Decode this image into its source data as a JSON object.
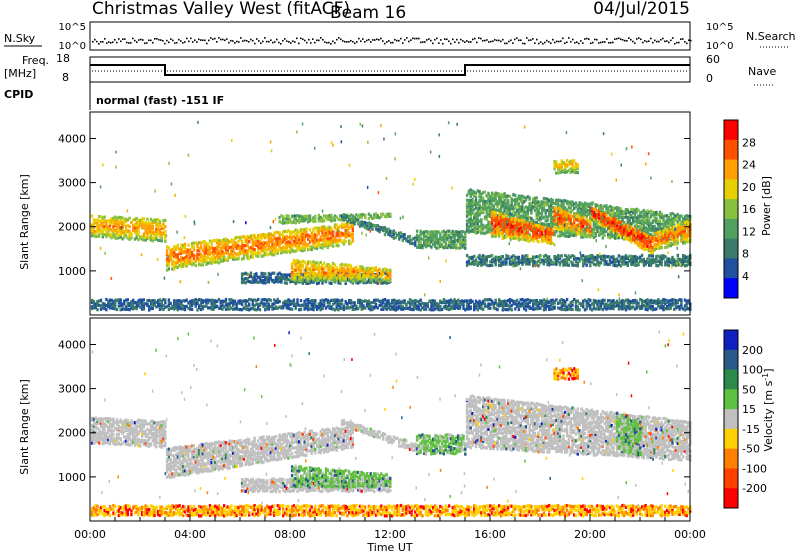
{
  "header": {
    "title": "Christmas Valley West (fitACF)",
    "beam": "Beam 16",
    "date": "04/Jul/2015"
  },
  "sky_panel": {
    "left_label": "N.Sky",
    "right_label": "N.Search",
    "left_ticks": [
      "10^5",
      "10^0"
    ],
    "right_ticks": [
      "10^5",
      "10^0"
    ]
  },
  "freq_panel": {
    "left_label_line1": "Freq.",
    "left_label_line2": "[MHz]",
    "left_ticks": [
      "18",
      "8"
    ],
    "right_label": "Nave",
    "right_ticks": [
      "60",
      "0"
    ]
  },
  "cpid": {
    "label": "CPID",
    "text": "normal (fast) -151 IF"
  },
  "chart_data": [
    {
      "type": "line",
      "panel": "frequency",
      "x_unit": "hours UT",
      "ylim": [
        8,
        18
      ],
      "series": [
        {
          "values": [
            [
              0,
              15.5
            ],
            [
              3,
              15.5
            ],
            [
              3,
              10.5
            ],
            [
              15,
              10.5
            ],
            [
              15,
              15.5
            ],
            [
              24,
              15.5
            ]
          ]
        }
      ]
    },
    {
      "type": "heatmap",
      "panel": "power",
      "xlabel": "",
      "ylabel": "Slant Range [km]",
      "xlim": [
        0,
        24
      ],
      "ylim": [
        0,
        4600
      ],
      "y_ticks": [
        1000,
        2000,
        3000,
        4000
      ],
      "colorbar": {
        "label": "Power [dB]",
        "ticks": [
          4,
          8,
          12,
          16,
          20,
          24,
          28
        ],
        "min": 0,
        "max": 32,
        "colors": [
          "#0000ff",
          "#2050a0",
          "#3a7a6a",
          "#52a060",
          "#88c040",
          "#e8d000",
          "#ffa000",
          "#ff5000",
          "#ff0000"
        ]
      },
      "echo_bands": [
        {
          "x": [
            0.0,
            3.0
          ],
          "y_lo": [
            1800,
            1700
          ],
          "y_hi": [
            2300,
            2200
          ],
          "level": 22
        },
        {
          "x": [
            3.0,
            10.5
          ],
          "y_lo": [
            1050,
            1650
          ],
          "y_hi": [
            1600,
            2150
          ],
          "level": 24
        },
        {
          "x": [
            7.5,
            12.0
          ],
          "y_lo": [
            2100,
            2250
          ],
          "y_hi": [
            2300,
            2350
          ],
          "level": 14
        },
        {
          "x": [
            10.0,
            13.0
          ],
          "y_lo": [
            2200,
            1600
          ],
          "y_hi": [
            2350,
            1800
          ],
          "level": 8
        },
        {
          "x": [
            13.0,
            15.0
          ],
          "y_lo": [
            1550,
            1550
          ],
          "y_hi": [
            1950,
            1950
          ],
          "level": 12
        },
        {
          "x": [
            6.0,
            12.0
          ],
          "y_lo": [
            750,
            750
          ],
          "y_hi": [
            1000,
            1000
          ],
          "level": 6
        },
        {
          "x": [
            8.0,
            12.0
          ],
          "y_lo": [
            800,
            800
          ],
          "y_hi": [
            1300,
            1100
          ],
          "level": 22
        },
        {
          "x": [
            15.0,
            24.0
          ],
          "y_lo": [
            1900,
            1700
          ],
          "y_hi": [
            2900,
            2300
          ],
          "level": 12
        },
        {
          "x": [
            16.0,
            18.5
          ],
          "y_lo": [
            1800,
            1650
          ],
          "y_hi": [
            2400,
            2000
          ],
          "level": 27
        },
        {
          "x": [
            18.5,
            20.0
          ],
          "y_lo": [
            2000,
            1800
          ],
          "y_hi": [
            2500,
            2200
          ],
          "level": 26
        },
        {
          "x": [
            20.0,
            22.5
          ],
          "y_lo": [
            2200,
            1400
          ],
          "y_hi": [
            2500,
            1800
          ],
          "level": 28
        },
        {
          "x": [
            22.5,
            24.0
          ],
          "y_lo": [
            1500,
            1700
          ],
          "y_hi": [
            1900,
            2200
          ],
          "level": 24
        },
        {
          "x": [
            18.5,
            19.5
          ],
          "y_lo": [
            3250,
            3250
          ],
          "y_hi": [
            3550,
            3550
          ],
          "level": 20
        },
        {
          "x": [
            15.0,
            24.0
          ],
          "y_lo": [
            1150,
            1150
          ],
          "y_hi": [
            1400,
            1400
          ],
          "level": 8
        },
        {
          "x": [
            0.0,
            24.0
          ],
          "y_lo": [
            150,
            150
          ],
          "y_hi": [
            400,
            400
          ],
          "level": 6
        }
      ]
    },
    {
      "type": "heatmap",
      "panel": "velocity",
      "xlabel": "Time UT",
      "ylabel": "Slant Range [km]",
      "xlim": [
        0,
        24
      ],
      "ylim": [
        0,
        4600
      ],
      "x_ticks": [
        "00:00",
        "04:00",
        "08:00",
        "12:00",
        "16:00",
        "20:00",
        "00:00"
      ],
      "y_ticks": [
        1000,
        2000,
        3000,
        4000
      ],
      "colorbar": {
        "label": "Velocity [m s-1]",
        "ticks": [
          200,
          100,
          50,
          15,
          -15,
          -50,
          -100,
          -200
        ],
        "colors": [
          "#1020c0",
          "#2a5a8a",
          "#2e8a4a",
          "#60c040",
          "#c0c0c0",
          "#ffd000",
          "#ff8000",
          "#ff4000",
          "#ff0000"
        ]
      },
      "echo_bands": [
        {
          "x": [
            0.0,
            3.0
          ],
          "y_lo": [
            1800,
            1700
          ],
          "y_hi": [
            2400,
            2300
          ],
          "class": "gs"
        },
        {
          "x": [
            3.0,
            10.5
          ],
          "y_lo": [
            1000,
            1700
          ],
          "y_hi": [
            1700,
            2200
          ],
          "class": "gs"
        },
        {
          "x": [
            6.0,
            12.0
          ],
          "y_lo": [
            700,
            700
          ],
          "y_hi": [
            1000,
            1000
          ],
          "class": "gs"
        },
        {
          "x": [
            8.0,
            12.0
          ],
          "y_lo": [
            800,
            800
          ],
          "y_hi": [
            1300,
            1100
          ],
          "class": "pos"
        },
        {
          "x": [
            10.0,
            13.0
          ],
          "y_lo": [
            2200,
            1600
          ],
          "y_hi": [
            2350,
            1800
          ],
          "class": "gs"
        },
        {
          "x": [
            13.0,
            15.0
          ],
          "y_lo": [
            1550,
            1550
          ],
          "y_hi": [
            2000,
            2000
          ],
          "class": "pos"
        },
        {
          "x": [
            15.0,
            24.0
          ],
          "y_lo": [
            1700,
            1400
          ],
          "y_hi": [
            2900,
            2300
          ],
          "class": "gs"
        },
        {
          "x": [
            21.0,
            22.0
          ],
          "y_lo": [
            1600,
            1500
          ],
          "y_hi": [
            2500,
            2300
          ],
          "class": "pos"
        },
        {
          "x": [
            18.5,
            19.5
          ],
          "y_lo": [
            3250,
            3250
          ],
          "y_hi": [
            3500,
            3500
          ],
          "class": "neg"
        },
        {
          "x": [
            0.0,
            24.0
          ],
          "y_lo": [
            150,
            150
          ],
          "y_hi": [
            400,
            400
          ],
          "class": "neg"
        }
      ]
    }
  ]
}
